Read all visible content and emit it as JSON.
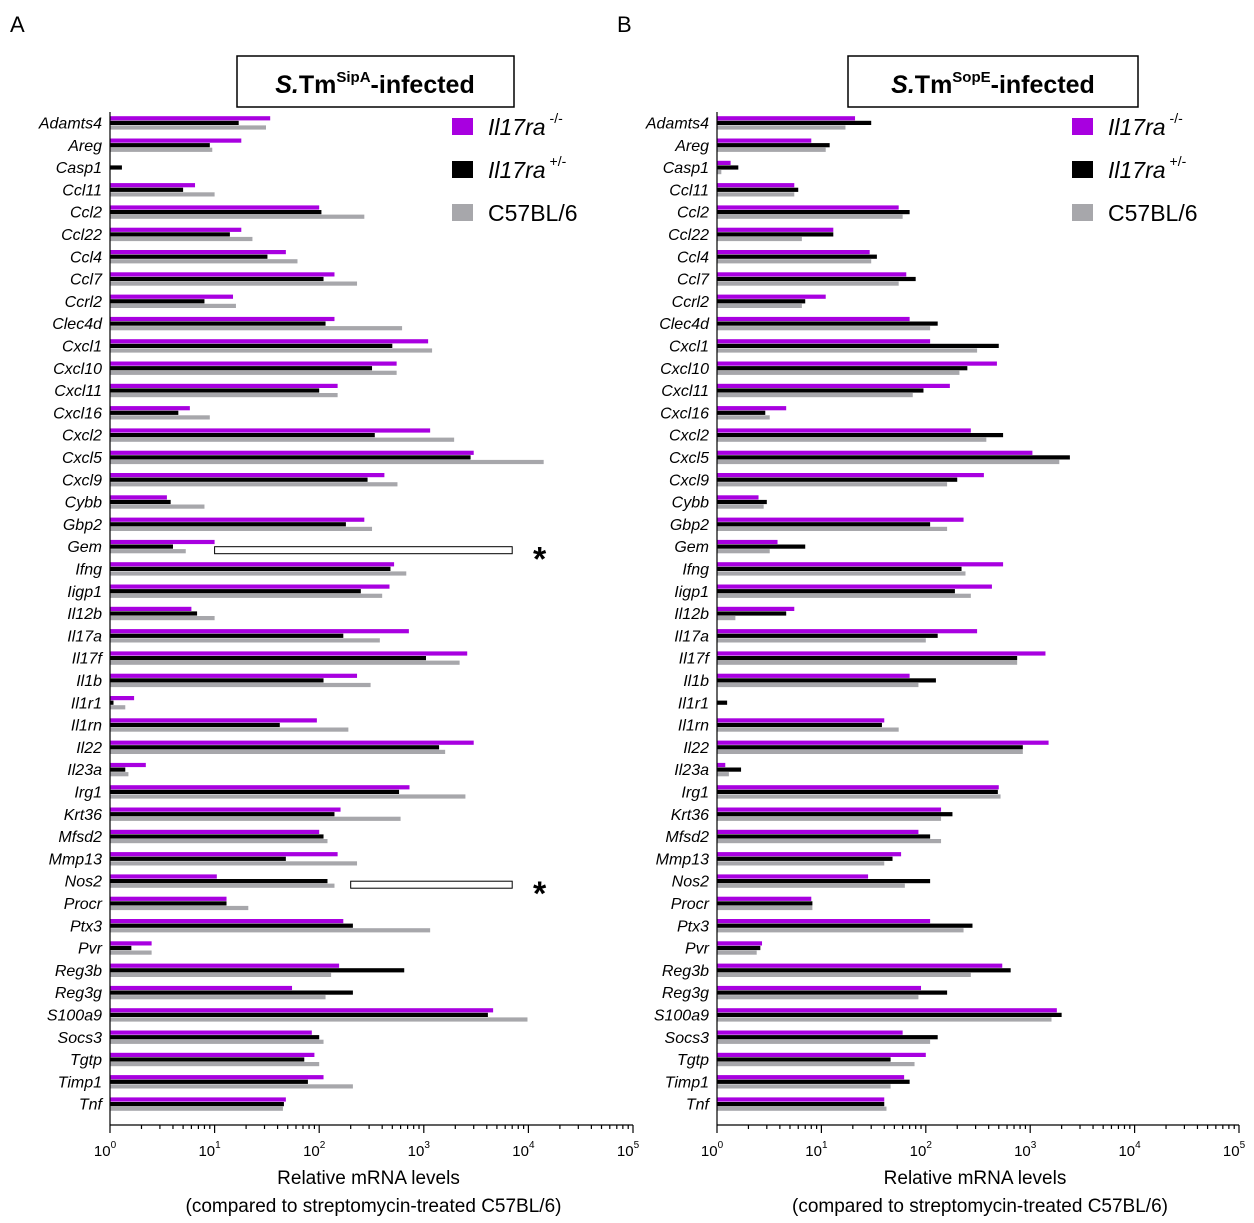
{
  "figure": {
    "genes": [
      "Adamts4",
      "Areg",
      "Casp1",
      "Ccl11",
      "Ccl2",
      "Ccl22",
      "Ccl4",
      "Ccl7",
      "Ccrl2",
      "Clec4d",
      "Cxcl1",
      "Cxcl10",
      "Cxcl11",
      "Cxcl16",
      "Cxcl2",
      "Cxcl5",
      "Cxcl9",
      "Cybb",
      "Gbp2",
      "Gem",
      "Ifng",
      "Iigp1",
      "Il12b",
      "Il17a",
      "Il17f",
      "Il1b",
      "Il1r1",
      "Il1rn",
      "Il22",
      "Il23a",
      "Irg1",
      "Krt36",
      "Mfsd2",
      "Mmp13",
      "Nos2",
      "Procr",
      "Ptx3",
      "Pvr",
      "Reg3b",
      "Reg3g",
      "S100a9",
      "Socs3",
      "Tgtp",
      "Timp1",
      "Tnf"
    ],
    "legend": [
      {
        "base": "Il17ra",
        "sup": "-/-",
        "italic": true,
        "color": "#a800e0"
      },
      {
        "base": "Il17ra",
        "sup": "+/-",
        "italic": true,
        "color": "#000000"
      },
      {
        "base": "C57BL/6",
        "sup": "",
        "italic": false,
        "color": "#a7a7ab"
      }
    ],
    "xlabel_line1": "Relative mRNA levels",
    "xlabel_line2": "(compared to streptomycin-treated C57BL/6)",
    "tick_base": "10",
    "tick_exponents": [
      "0",
      "1",
      "2",
      "3",
      "4",
      "5"
    ],
    "star": "*"
  },
  "chart_data": [
    {
      "type": "bar",
      "panel": "A",
      "title": "S.Tm",
      "title_parts": {
        "italic": "S.",
        "main": "Tm",
        "sup": "SipA",
        "suffix": "-infected"
      },
      "xlabel": "Relative mRNA levels (compared to streptomycin-treated C57BL/6)",
      "xscale": "log",
      "xlim": [
        1,
        100000
      ],
      "orientation": "horizontal",
      "legend_position": "top-right",
      "significance": [
        {
          "gene": "Gem",
          "bar_range": [
            10,
            7000
          ],
          "marker": "*"
        },
        {
          "gene": "Nos2",
          "bar_range": [
            200,
            7000
          ],
          "marker": "*"
        }
      ],
      "series": [
        {
          "name": "Il17ra -/-",
          "values": [
            34,
            18,
            1,
            6.5,
            100,
            18,
            48,
            140,
            15,
            140,
            1100,
            550,
            150,
            5.8,
            1150,
            3000,
            420,
            3.5,
            270,
            10,
            520,
            470,
            6,
            720,
            2600,
            230,
            1.7,
            95,
            3000,
            2.2,
            730,
            160,
            100,
            150,
            10.5,
            13,
            170,
            2.5,
            155,
            55,
            4600,
            85,
            90,
            110,
            48
          ]
        },
        {
          "name": "Il17ra +/-",
          "values": [
            17,
            9,
            1.3,
            5,
            105,
            14,
            32,
            110,
            8,
            115,
            500,
            320,
            100,
            4.5,
            340,
            2800,
            290,
            3.8,
            180,
            4,
            480,
            250,
            6.8,
            170,
            1050,
            110,
            1.08,
            42,
            1400,
            1.4,
            580,
            140,
            110,
            48,
            120,
            13,
            210,
            1.6,
            650,
            210,
            4100,
            100,
            72,
            78,
            46
          ]
        },
        {
          "name": "C57BL/6",
          "values": [
            31,
            9.5,
            1,
            10,
            270,
            23,
            62,
            230,
            16,
            620,
            1200,
            550,
            150,
            9,
            1950,
            14000,
            560,
            8,
            320,
            5.3,
            680,
            400,
            10,
            380,
            2200,
            310,
            1.4,
            190,
            1600,
            1.5,
            2500,
            600,
            120,
            230,
            140,
            21,
            1150,
            2.5,
            130,
            115,
            9800,
            110,
            100,
            210,
            45
          ]
        }
      ]
    },
    {
      "type": "bar",
      "panel": "B",
      "title": "S.Tm",
      "title_parts": {
        "italic": "S.",
        "main": "Tm",
        "sup": "SopE",
        "suffix": "-infected"
      },
      "xlabel": "Relative mRNA levels (compared to streptomycin-treated C57BL/6)",
      "xscale": "log",
      "xlim": [
        1,
        100000
      ],
      "orientation": "horizontal",
      "legend_position": "top-right",
      "series": [
        {
          "name": "Il17ra -/-",
          "values": [
            21,
            8,
            1.35,
            5.5,
            55,
            13,
            29,
            65,
            11,
            70,
            110,
            480,
            170,
            4.6,
            270,
            1050,
            360,
            2.5,
            230,
            3.8,
            550,
            430,
            5.5,
            310,
            1400,
            70,
            1,
            40,
            1500,
            1.2,
            500,
            140,
            85,
            58,
            28,
            8,
            110,
            2.7,
            540,
            90,
            1800,
            60,
            100,
            62,
            40
          ]
        },
        {
          "name": "Il17ra +/-",
          "values": [
            30,
            12,
            1.6,
            6,
            70,
            13,
            34,
            80,
            7,
            130,
            500,
            250,
            95,
            2.9,
            550,
            2400,
            200,
            3,
            110,
            7,
            220,
            190,
            4.6,
            130,
            750,
            125,
            1.25,
            38,
            850,
            1.7,
            490,
            180,
            110,
            48,
            110,
            8.2,
            280,
            2.6,
            650,
            160,
            2000,
            130,
            46,
            70,
            40
          ]
        },
        {
          "name": "C57BL/6",
          "values": [
            17,
            11,
            1.1,
            5.5,
            60,
            6.5,
            30,
            55,
            6.5,
            110,
            310,
            210,
            75,
            3.2,
            380,
            1900,
            160,
            2.8,
            160,
            3.2,
            240,
            270,
            1.5,
            100,
            750,
            85,
            1,
            55,
            850,
            1.3,
            520,
            140,
            140,
            40,
            63,
            8.2,
            230,
            2.4,
            270,
            85,
            1600,
            110,
            78,
            46,
            42
          ]
        }
      ]
    }
  ]
}
